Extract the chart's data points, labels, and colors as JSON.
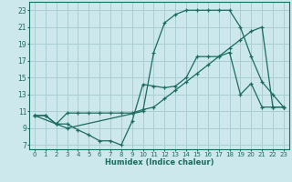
{
  "xlabel": "Humidex (Indice chaleur)",
  "bg_color": "#cde8ec",
  "grid_color": "#aacdd4",
  "line_color": "#1a6b60",
  "xlim": [
    -0.5,
    23.5
  ],
  "ylim": [
    6.5,
    24.0
  ],
  "xticks": [
    0,
    1,
    2,
    3,
    4,
    5,
    6,
    7,
    8,
    9,
    10,
    11,
    12,
    13,
    14,
    15,
    16,
    17,
    18,
    19,
    20,
    21,
    22,
    23
  ],
  "yticks": [
    7,
    9,
    11,
    13,
    15,
    17,
    19,
    21,
    23
  ],
  "line1_x": [
    0,
    1,
    2,
    3,
    4,
    5,
    6,
    7,
    8,
    9,
    10,
    11,
    12,
    13,
    14,
    15,
    16,
    17,
    18,
    19,
    20,
    21,
    22,
    23
  ],
  "line1_y": [
    10.5,
    10.5,
    9.5,
    9.5,
    8.8,
    8.2,
    7.5,
    7.5,
    7.0,
    9.8,
    14.2,
    14.0,
    13.8,
    14.0,
    15.0,
    17.5,
    17.5,
    17.5,
    18.0,
    13.0,
    14.3,
    11.5,
    11.5,
    11.5
  ],
  "line2_x": [
    0,
    1,
    2,
    3,
    4,
    5,
    6,
    7,
    8,
    9,
    10,
    11,
    12,
    13,
    14,
    15,
    16,
    17,
    18,
    19,
    20,
    21,
    22,
    23
  ],
  "line2_y": [
    10.5,
    10.5,
    9.5,
    10.8,
    10.8,
    10.8,
    10.8,
    10.8,
    10.8,
    10.8,
    11.2,
    11.5,
    12.5,
    13.5,
    14.5,
    15.5,
    16.5,
    17.5,
    18.5,
    19.5,
    20.5,
    21.0,
    11.5,
    11.5
  ],
  "line3_x": [
    0,
    2,
    3,
    10,
    11,
    12,
    13,
    14,
    15,
    16,
    17,
    18,
    19,
    20,
    21,
    22,
    23
  ],
  "line3_y": [
    10.5,
    9.5,
    9.0,
    11.0,
    18.0,
    21.5,
    22.5,
    23.0,
    23.0,
    23.0,
    23.0,
    23.0,
    21.0,
    17.5,
    14.5,
    13.0,
    11.5
  ]
}
